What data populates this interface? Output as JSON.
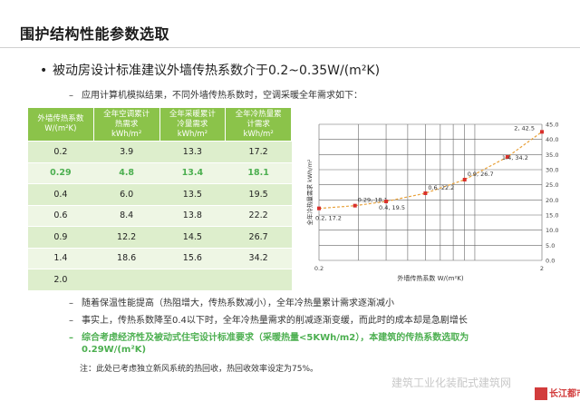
{
  "page": {
    "title": "围护结构性能参数选取",
    "bullet": "被动房设计标准建议外墙传热系数介于0.2~0.35W/(m²K)",
    "bullet_marker": "•",
    "sub_intro": "应用计算机模拟结果，不同外墙传热系数时，空调采暖全年需求如下：",
    "dash": "–",
    "points": [
      "随着保温性能提高（热阻增大，传热系数减小），全年冷热量累计需求逐渐减小",
      "事实上，传热系数降至0.4以下时，全年冷热量需求的削减逐渐变缓，而此时的成本却是急剧增长"
    ],
    "conclusion_line1": "综合考虑经济性及被动式住宅设计标准要求（采暖热量<5KWh/m2），本建筑的传热系数选取为",
    "conclusion_line2": "0.29W/(m²K)",
    "note": "注：此处已考虑独立新风系统的热回收，热回收效率设定为75%。",
    "watermark": "建筑工业化装配式建筑网",
    "logo_text": "长江都市",
    "accent_green": "#8bc34a",
    "highlight_green": "#4caf50",
    "line_color": "#e8a13a",
    "marker_color": "#d9302c"
  },
  "table": {
    "headers": [
      [
        "外墙传热系数",
        "W/(m²K)"
      ],
      [
        "全年空调累计",
        "热需求",
        "kWh/m²"
      ],
      [
        "全年采暖累计",
        "冷量需求",
        "kWh/m²"
      ],
      [
        "全年冷热量累",
        "计需求",
        "kWh/m²"
      ]
    ],
    "rows": [
      [
        "0.2",
        "3.9",
        "13.3",
        "17.2"
      ],
      [
        "0.29",
        "4.8",
        "13.4",
        "18.1"
      ],
      [
        "0.4",
        "6.0",
        "13.5",
        "19.5"
      ],
      [
        "0.6",
        "8.4",
        "13.8",
        "22.2"
      ],
      [
        "0.9",
        "12.2",
        "14.5",
        "26.7"
      ],
      [
        "1.4",
        "18.6",
        "15.6",
        "34.2"
      ],
      [
        "2.0",
        "",
        "",
        ""
      ]
    ],
    "highlight_row": 1
  },
  "chart_data": {
    "type": "scatter",
    "xlabel": "外墙传热系数 W/(m²K)",
    "ylabel": "全年冷热量需求 kWh/m²",
    "xlim": [
      0.2,
      2
    ],
    "ylim": [
      0,
      45
    ],
    "xscale": "log",
    "xticks": [
      "0.2",
      "2"
    ],
    "yticks": [
      "0.0",
      "5.0",
      "10.0",
      "15.0",
      "20.0",
      "25.0",
      "30.0",
      "35.0",
      "40.0",
      "45.0"
    ],
    "grid": true,
    "points": [
      {
        "x": 0.2,
        "y": 17.2,
        "label": "0.2, 17.2"
      },
      {
        "x": 0.29,
        "y": 18.1,
        "label": "0.29, 18.1"
      },
      {
        "x": 0.4,
        "y": 19.5,
        "label": "0.4, 19.5"
      },
      {
        "x": 0.6,
        "y": 22.2,
        "label": "0.6, 22.2"
      },
      {
        "x": 0.9,
        "y": 26.7,
        "label": "0.9, 26.7"
      },
      {
        "x": 1.4,
        "y": 34.2,
        "label": "1.4, 34.2"
      },
      {
        "x": 2,
        "y": 42.5,
        "label": "2, 42.5"
      }
    ]
  }
}
